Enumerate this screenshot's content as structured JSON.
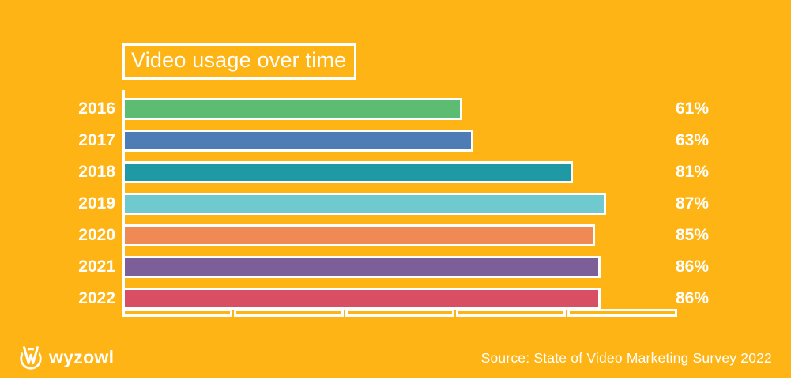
{
  "title": "Video usage over time",
  "brand": "wyzowl",
  "source": "Source: State of Video Marketing Survey 2022",
  "colors": {
    "background": "#FDB414",
    "text": "#FFFFFF",
    "axis": "#FFFFFF"
  },
  "icons": {
    "brand_icon": "wyzowl-crown-circle-icon"
  },
  "chart_data": {
    "type": "bar",
    "orientation": "horizontal",
    "title": "Video usage over time",
    "categories": [
      "2016",
      "2017",
      "2018",
      "2019",
      "2020",
      "2021",
      "2022"
    ],
    "values": [
      61,
      63,
      81,
      87,
      85,
      86,
      86
    ],
    "value_labels": [
      "61%",
      "63%",
      "81%",
      "87%",
      "85%",
      "86%",
      "86%"
    ],
    "bar_colors": [
      "#5CBC72",
      "#4E7CB5",
      "#1F99A4",
      "#6FC9CE",
      "#EF8A55",
      "#7C5F99",
      "#D84F64"
    ],
    "xlim": [
      0,
      100
    ],
    "x_ticks": [
      0,
      20,
      40,
      60,
      80,
      100
    ],
    "grid": false,
    "legend": false,
    "unit": "%"
  }
}
